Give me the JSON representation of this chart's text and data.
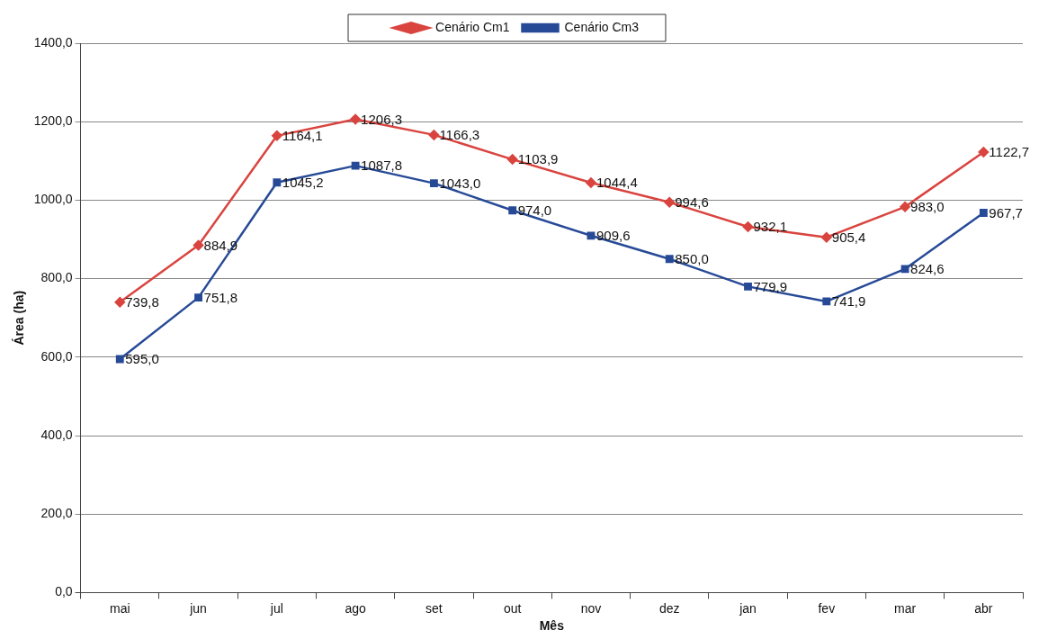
{
  "chart_data": {
    "type": "line",
    "xlabel": "Mês",
    "ylabel": "Área (ha)",
    "categories": [
      "mai",
      "jun",
      "jul",
      "ago",
      "set",
      "out",
      "nov",
      "dez",
      "jan",
      "fev",
      "mar",
      "abr"
    ],
    "series": [
      {
        "name": "Cenário Cm1",
        "color": "#d9443f",
        "marker": "diamond",
        "values": [
          739.8,
          884.9,
          1164.1,
          1206.3,
          1166.3,
          1103.9,
          1044.4,
          994.6,
          932.1,
          905.4,
          983.0,
          1122.7
        ],
        "value_labels": [
          "739,8",
          "884,9",
          "1164,1",
          "1206,3",
          "1166,3",
          "1103,9",
          "1044,4",
          "994,6",
          "932,1",
          "905,4",
          "983,0",
          "1122,7"
        ]
      },
      {
        "name": "Cenário Cm3",
        "color": "#274a97",
        "marker": "square",
        "values": [
          595.0,
          751.8,
          1045.2,
          1087.8,
          1043.0,
          974.0,
          909.6,
          850.0,
          779.9,
          741.9,
          824.6,
          967.7
        ],
        "value_labels": [
          "595,0",
          "751,8",
          "1045,2",
          "1087,8",
          "1043,0",
          "974,0",
          "909,6",
          "850,0",
          "779,9",
          "741,9",
          "824,6",
          "967,7"
        ]
      }
    ],
    "ylim": [
      0,
      1400
    ],
    "yticks": [
      {
        "value": 0,
        "label": "0,0"
      },
      {
        "value": 200,
        "label": "200,0"
      },
      {
        "value": 400,
        "label": "400,0"
      },
      {
        "value": 600,
        "label": "600,0"
      },
      {
        "value": 800,
        "label": "800,0"
      },
      {
        "value": 1000,
        "label": "1000,0"
      },
      {
        "value": 1200,
        "label": "1200,0"
      },
      {
        "value": 1400,
        "label": "1400,0"
      }
    ],
    "grid": "y",
    "legend": "top",
    "line_style": "solid"
  }
}
